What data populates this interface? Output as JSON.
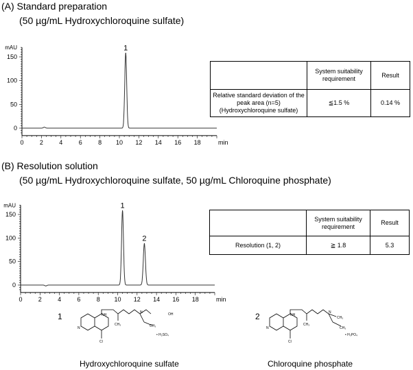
{
  "section_a": {
    "title": "(A) Standard preparation",
    "subtitle": "(50 µg/mL Hydroxychloroquine sulfate)"
  },
  "section_b": {
    "title": "(B) Resolution solution",
    "subtitle": "(50 µg/mL Hydroxychloroquine sulfate, 50 µg/mL Chloroquine phosphate)"
  },
  "table_a": {
    "headers": [
      "",
      "System  suitability requirement",
      "Result"
    ],
    "row": [
      "Relative standard deviation of the peak area (n=5) (Hydroxychloroquine sulfate)",
      "≦1.5 %",
      "0.14 %"
    ]
  },
  "table_b": {
    "headers": [
      "",
      "System  suitability requirement",
      "Result"
    ],
    "row": [
      "Resolution (1, 2)",
      "≧  1.8",
      "5.3"
    ]
  },
  "chart_data": [
    {
      "type": "line",
      "ylabel": "mAU",
      "xlabel": "min",
      "xlim": [
        0,
        20
      ],
      "ylim": [
        -10,
        170
      ],
      "xticks": [
        "0",
        "2",
        "4",
        "6",
        "8",
        "10",
        "12",
        "14",
        "16",
        "18"
      ],
      "yticks": [
        "0",
        "50",
        "100",
        "150"
      ],
      "peaks": [
        {
          "label": "1",
          "x": 10.65,
          "y": 158,
          "width": 0.1
        }
      ],
      "minor_bumps": [
        {
          "x": 2.3,
          "y": 2
        }
      ]
    },
    {
      "type": "line",
      "ylabel": "mAU",
      "xlabel": "min",
      "xlim": [
        0,
        20
      ],
      "ylim": [
        -10,
        170
      ],
      "xticks": [
        "0",
        "2",
        "4",
        "6",
        "8",
        "10",
        "12",
        "14",
        "16",
        "18"
      ],
      "yticks": [
        "0",
        "50",
        "100",
        "150"
      ],
      "peaks": [
        {
          "label": "1",
          "x": 10.5,
          "y": 158,
          "width": 0.1
        },
        {
          "label": "2",
          "x": 12.75,
          "y": 88,
          "width": 0.11
        }
      ],
      "minor_bumps": [
        {
          "x": 2.6,
          "y": -2
        }
      ]
    }
  ],
  "structures": [
    {
      "number": "1",
      "name": "Hydroxychloroquine sulfate",
      "salt": "• H₂SO₄",
      "atoms": [
        "NH",
        "N",
        "OH",
        "CH₃",
        "CH₃",
        "N",
        "Cl"
      ]
    },
    {
      "number": "2",
      "name": "Chloroquine phosphate",
      "salt": "• H₃PO₄",
      "atoms": [
        "NH",
        "N",
        "CH₃",
        "CH₃",
        "CH₃",
        "N",
        "Cl"
      ]
    }
  ]
}
